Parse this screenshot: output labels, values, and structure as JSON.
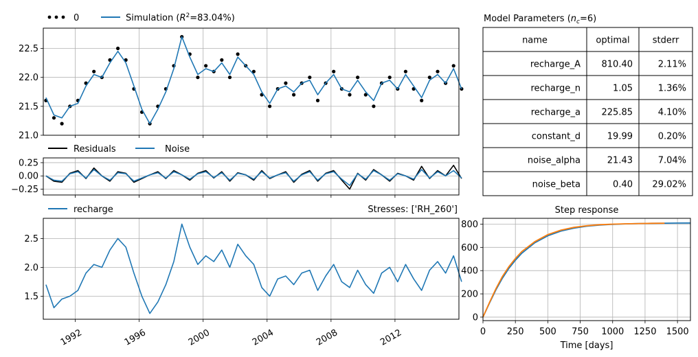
{
  "colors": {
    "blue": "#1f77b4",
    "orange": "#ff7f0e",
    "black": "#000000",
    "grid": "#b0b0b0"
  },
  "chart_data": [
    {
      "id": "head",
      "type": "line",
      "legend": {
        "location": "top-left",
        "entries": [
          "0",
          "Simulation ($R^2$=83.04%)"
        ]
      },
      "ylim": [
        21.0,
        22.85
      ],
      "yticks": [
        21.0,
        21.5,
        22.0,
        22.5
      ],
      "ytick_labels": [
        "21.0",
        "21.5",
        "22.0",
        "22.5"
      ],
      "grid": true,
      "series": [
        {
          "name": "0",
          "style": "dots",
          "color": "#000000",
          "x": [
            "1990-03",
            "1990-09",
            "1991-03",
            "1991-09",
            "1992-03",
            "1992-09",
            "1993-03",
            "1993-09",
            "1994-03",
            "1994-09",
            "1995-03",
            "1995-09",
            "1996-03",
            "1996-09",
            "1997-03",
            "1997-09",
            "1998-03",
            "1998-09",
            "1999-03",
            "1999-09",
            "2000-03",
            "2000-09",
            "2001-03",
            "2001-09",
            "2002-03",
            "2002-09",
            "2003-03",
            "2003-09",
            "2004-03",
            "2004-09",
            "2005-03",
            "2005-09",
            "2006-03",
            "2006-09",
            "2007-03",
            "2007-09",
            "2008-03",
            "2008-09",
            "2009-03",
            "2009-09",
            "2010-03",
            "2010-09",
            "2011-03",
            "2011-09",
            "2012-03",
            "2012-09",
            "2013-03",
            "2013-09",
            "2014-03",
            "2014-09",
            "2015-03",
            "2015-09",
            "2016-03"
          ],
          "y": [
            21.6,
            21.3,
            21.2,
            21.5,
            21.6,
            21.9,
            22.1,
            22.0,
            22.3,
            22.5,
            22.3,
            21.8,
            21.4,
            21.2,
            21.5,
            21.8,
            22.2,
            22.7,
            22.4,
            22.0,
            22.2,
            22.1,
            22.3,
            22.0,
            22.4,
            22.2,
            22.1,
            21.7,
            21.5,
            21.8,
            21.9,
            21.7,
            21.9,
            22.0,
            21.6,
            21.9,
            22.1,
            21.8,
            21.7,
            22.0,
            21.7,
            21.5,
            21.9,
            22.0,
            21.8,
            22.1,
            21.8,
            21.6,
            22.0,
            22.1,
            21.9,
            22.2,
            21.8
          ]
        },
        {
          "name": "Simulation ($R^2$=83.04%)",
          "style": "line",
          "color": "#1f77b4",
          "x": [
            "1990-03",
            "1990-09",
            "1991-03",
            "1991-09",
            "1992-03",
            "1992-09",
            "1993-03",
            "1993-09",
            "1994-03",
            "1994-09",
            "1995-03",
            "1995-09",
            "1996-03",
            "1996-09",
            "1997-03",
            "1997-09",
            "1998-03",
            "1998-09",
            "1999-03",
            "1999-09",
            "2000-03",
            "2000-09",
            "2001-03",
            "2001-09",
            "2002-03",
            "2002-09",
            "2003-03",
            "2003-09",
            "2004-03",
            "2004-09",
            "2005-03",
            "2005-09",
            "2006-03",
            "2006-09",
            "2007-03",
            "2007-09",
            "2008-03",
            "2008-09",
            "2009-03",
            "2009-09",
            "2010-03",
            "2010-09",
            "2011-03",
            "2011-09",
            "2012-03",
            "2012-09",
            "2013-03",
            "2013-09",
            "2014-03",
            "2014-09",
            "2015-03",
            "2015-09",
            "2016-03"
          ],
          "y": [
            21.65,
            21.35,
            21.3,
            21.5,
            21.55,
            21.85,
            22.05,
            22.0,
            22.25,
            22.45,
            22.25,
            21.85,
            21.45,
            21.2,
            21.45,
            21.75,
            22.15,
            22.7,
            22.35,
            22.05,
            22.15,
            22.1,
            22.25,
            22.05,
            22.35,
            22.2,
            22.05,
            21.75,
            21.55,
            21.8,
            21.85,
            21.75,
            21.9,
            21.95,
            21.7,
            21.9,
            22.05,
            21.8,
            21.75,
            21.95,
            21.75,
            21.6,
            21.9,
            21.95,
            21.8,
            22.05,
            21.85,
            21.65,
            21.95,
            22.05,
            21.9,
            22.15,
            21.8
          ]
        }
      ]
    },
    {
      "id": "residuals",
      "type": "line",
      "legend": {
        "location": "top-left",
        "entries": [
          "Residuals",
          "Noise"
        ]
      },
      "ylim": [
        -0.36,
        0.34
      ],
      "yticks": [
        -0.25,
        0.0,
        0.25
      ],
      "ytick_labels": [
        "−0.25",
        "0.00",
        "0.25"
      ],
      "grid": true,
      "series": [
        {
          "name": "Residuals",
          "color": "#000000",
          "x": [
            "1990-03",
            "1990-09",
            "1991-03",
            "1991-09",
            "1992-03",
            "1992-09",
            "1993-03",
            "1993-09",
            "1994-03",
            "1994-09",
            "1995-03",
            "1995-09",
            "1996-03",
            "1996-09",
            "1997-03",
            "1997-09",
            "1998-03",
            "1998-09",
            "1999-03",
            "1999-09",
            "2000-03",
            "2000-09",
            "2001-03",
            "2001-09",
            "2002-03",
            "2002-09",
            "2003-03",
            "2003-09",
            "2004-03",
            "2004-09",
            "2005-03",
            "2005-09",
            "2006-03",
            "2006-09",
            "2007-03",
            "2007-09",
            "2008-03",
            "2008-09",
            "2009-03",
            "2009-09",
            "2010-03",
            "2010-09",
            "2011-03",
            "2011-09",
            "2012-03",
            "2012-09",
            "2013-03",
            "2013-09",
            "2014-03",
            "2014-09",
            "2015-03",
            "2015-09",
            "2016-03"
          ],
          "y": [
            0.0,
            -0.1,
            -0.12,
            0.05,
            0.1,
            -0.05,
            0.15,
            0.0,
            -0.1,
            0.08,
            0.05,
            -0.12,
            -0.05,
            0.02,
            0.08,
            -0.05,
            0.1,
            0.02,
            -0.08,
            0.05,
            0.1,
            -0.04,
            0.08,
            -0.1,
            0.06,
            0.02,
            -0.08,
            0.1,
            -0.05,
            0.02,
            0.08,
            -0.12,
            0.03,
            0.1,
            -0.1,
            0.05,
            0.1,
            -0.08,
            -0.25,
            0.05,
            -0.08,
            0.12,
            0.02,
            -0.1,
            0.05,
            0.0,
            -0.08,
            0.18,
            -0.05,
            0.1,
            0.0,
            0.2,
            -0.05
          ]
        },
        {
          "name": "Noise",
          "color": "#1f77b4",
          "x": [
            "1990-03",
            "1990-09",
            "1991-03",
            "1991-09",
            "1992-03",
            "1992-09",
            "1993-03",
            "1993-09",
            "1994-03",
            "1994-09",
            "1995-03",
            "1995-09",
            "1996-03",
            "1996-09",
            "1997-03",
            "1997-09",
            "1998-03",
            "1998-09",
            "1999-03",
            "1999-09",
            "2000-03",
            "2000-09",
            "2001-03",
            "2001-09",
            "2002-03",
            "2002-09",
            "2003-03",
            "2003-09",
            "2004-03",
            "2004-09",
            "2005-03",
            "2005-09",
            "2006-03",
            "2006-09",
            "2007-03",
            "2007-09",
            "2008-03",
            "2008-09",
            "2009-03",
            "2009-09",
            "2010-03",
            "2010-09",
            "2011-03",
            "2011-09",
            "2012-03",
            "2012-09",
            "2013-03",
            "2013-09",
            "2014-03",
            "2014-09",
            "2015-03",
            "2015-09",
            "2016-03"
          ],
          "y": [
            0.0,
            -0.08,
            -0.1,
            0.04,
            0.08,
            -0.04,
            0.12,
            0.0,
            -0.08,
            0.06,
            0.04,
            -0.1,
            -0.04,
            0.02,
            0.06,
            -0.04,
            0.08,
            0.02,
            -0.06,
            0.04,
            0.08,
            -0.03,
            0.06,
            -0.08,
            0.05,
            0.02,
            -0.06,
            0.08,
            -0.04,
            0.02,
            0.06,
            -0.1,
            0.02,
            0.08,
            -0.08,
            0.04,
            0.08,
            -0.06,
            -0.18,
            0.04,
            -0.06,
            0.1,
            0.02,
            -0.08,
            0.04,
            0.0,
            -0.06,
            0.12,
            -0.04,
            0.08,
            0.0,
            0.1,
            -0.04
          ]
        }
      ]
    },
    {
      "id": "recharge",
      "type": "line",
      "legend": {
        "location": "top-left",
        "entries": [
          "recharge"
        ]
      },
      "title_right": "Stresses: ['RH_260']",
      "ylim": [
        1.1,
        2.85
      ],
      "yticks": [
        1.5,
        2.0,
        2.5
      ],
      "ytick_labels": [
        "1.5",
        "2.0",
        "2.5"
      ],
      "xticks": [
        "1992",
        "1996",
        "2000",
        "2004",
        "2008",
        "2012"
      ],
      "xlim": [
        "1990-01",
        "2016-01"
      ],
      "grid": true,
      "series": [
        {
          "name": "recharge",
          "color": "#1f77b4",
          "x": [
            "1990-03",
            "1990-09",
            "1991-03",
            "1991-09",
            "1992-03",
            "1992-09",
            "1993-03",
            "1993-09",
            "1994-03",
            "1994-09",
            "1995-03",
            "1995-09",
            "1996-03",
            "1996-09",
            "1997-03",
            "1997-09",
            "1998-03",
            "1998-09",
            "1999-03",
            "1999-09",
            "2000-03",
            "2000-09",
            "2001-03",
            "2001-09",
            "2002-03",
            "2002-09",
            "2003-03",
            "2003-09",
            "2004-03",
            "2004-09",
            "2005-03",
            "2005-09",
            "2006-03",
            "2006-09",
            "2007-03",
            "2007-09",
            "2008-03",
            "2008-09",
            "2009-03",
            "2009-09",
            "2010-03",
            "2010-09",
            "2011-03",
            "2011-09",
            "2012-03",
            "2012-09",
            "2013-03",
            "2013-09",
            "2014-03",
            "2014-09",
            "2015-03",
            "2015-09",
            "2016-03"
          ],
          "y": [
            1.7,
            1.3,
            1.45,
            1.5,
            1.6,
            1.9,
            2.05,
            2.0,
            2.3,
            2.5,
            2.35,
            1.9,
            1.5,
            1.2,
            1.4,
            1.7,
            2.1,
            2.75,
            2.35,
            2.05,
            2.2,
            2.1,
            2.3,
            2.0,
            2.4,
            2.2,
            2.05,
            1.65,
            1.5,
            1.8,
            1.85,
            1.7,
            1.9,
            1.95,
            1.6,
            1.85,
            2.05,
            1.75,
            1.65,
            1.95,
            1.7,
            1.55,
            1.9,
            2.0,
            1.75,
            2.05,
            1.8,
            1.6,
            1.95,
            2.1,
            1.9,
            2.2,
            1.75
          ]
        }
      ]
    },
    {
      "id": "step",
      "type": "line",
      "title": "Step response",
      "xlabel": "Time [days]",
      "xlim": [
        0,
        1600
      ],
      "ylim": [
        -30,
        850
      ],
      "xticks": [
        0,
        250,
        500,
        750,
        1000,
        1250,
        1500
      ],
      "yticks": [
        0,
        200,
        400,
        600,
        800
      ],
      "grid": true,
      "series": [
        {
          "name": "",
          "color": "#1f77b4",
          "x": [
            0,
            50,
            100,
            150,
            200,
            250,
            300,
            400,
            500,
            600,
            700,
            800,
            900,
            1000,
            1100,
            1200,
            1300,
            1400,
            1500,
            1600
          ],
          "y": [
            0,
            120,
            235,
            335,
            420,
            490,
            550,
            640,
            700,
            740,
            765,
            782,
            792,
            798,
            802,
            805,
            807,
            808,
            809,
            810
          ]
        },
        {
          "name": "",
          "color": "#ff7f0e",
          "x": [
            0,
            50,
            100,
            150,
            200,
            250,
            300,
            400,
            500,
            600,
            700,
            800,
            900,
            1000,
            1100,
            1200,
            1300,
            1400
          ],
          "y": [
            0,
            125,
            245,
            350,
            435,
            505,
            565,
            650,
            710,
            748,
            772,
            786,
            795,
            800,
            803,
            805,
            807,
            808
          ]
        }
      ]
    }
  ],
  "params_table": {
    "title": "Model Parameters ($n_c$=6)",
    "columns": [
      "name",
      "optimal",
      "stderr"
    ],
    "rows": [
      [
        "recharge_A",
        "810.40",
        "2.11%"
      ],
      [
        "recharge_n",
        "1.05",
        "1.36%"
      ],
      [
        "recharge_a",
        "225.85",
        "4.10%"
      ],
      [
        "constant_d",
        "19.99",
        "0.20%"
      ],
      [
        "noise_alpha",
        "21.43",
        "7.04%"
      ],
      [
        "noise_beta",
        "0.40",
        "29.02%"
      ]
    ]
  }
}
